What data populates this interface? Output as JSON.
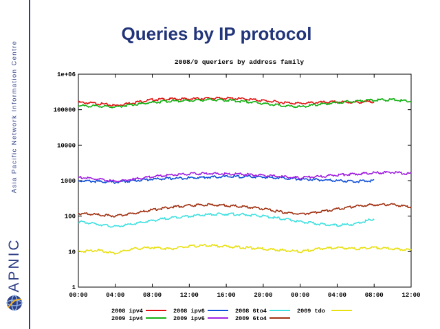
{
  "slide": {
    "title": "Queries by IP protocol",
    "org_name": "Asia Pacific Network Information Centre",
    "brand": "APNIC",
    "logo_icon": "apnic-globe-icon",
    "brand_color": "#2e3f86"
  },
  "chart_data": {
    "type": "line",
    "title": "2008/9 queriers by address family",
    "xlabel": "",
    "ylabel": "",
    "yscale": "log",
    "ylim": [
      1,
      1000000
    ],
    "yticks": [
      {
        "value": 1000000,
        "label": "1e+06"
      },
      {
        "value": 100000,
        "label": "100000"
      },
      {
        "value": 10000,
        "label": "10000"
      },
      {
        "value": 1000,
        "label": "1000"
      },
      {
        "value": 100,
        "label": "100"
      },
      {
        "value": 10,
        "label": "10"
      },
      {
        "value": 1,
        "label": "1"
      }
    ],
    "xlim": [
      0,
      36
    ],
    "xticks": [
      "00:00",
      "04:00",
      "08:00",
      "12:00",
      "16:00",
      "20:00",
      "00:00",
      "04:00",
      "08:00",
      "12:00"
    ],
    "grid": false,
    "legend_position": "bottom",
    "x": [
      0,
      2,
      4,
      6,
      8,
      10,
      12,
      14,
      16,
      18,
      20,
      22,
      24,
      26,
      28,
      30,
      32,
      34,
      36
    ],
    "series": [
      {
        "name": "2008 ipv4",
        "color": "#e01010",
        "values": [
          160000,
          150000,
          130000,
          160000,
          190000,
          200000,
          200000,
          210000,
          210000,
          200000,
          180000,
          160000,
          150000,
          160000,
          165000,
          160000,
          170000,
          null,
          null
        ]
      },
      {
        "name": "2008 ipv6",
        "color": "#1050d8",
        "values": [
          1000,
          950,
          900,
          1000,
          1100,
          1150,
          1200,
          1250,
          1300,
          1300,
          1250,
          1200,
          1100,
          1050,
          1000,
          950,
          1000,
          null,
          null
        ]
      },
      {
        "name": "2008 6to4",
        "color": "#40e0e0",
        "values": [
          70,
          60,
          50,
          60,
          75,
          90,
          100,
          110,
          115,
          110,
          100,
          85,
          70,
          60,
          55,
          60,
          85,
          null,
          null
        ]
      },
      {
        "name": "2009 tdo",
        "color": "#e8e010",
        "values": [
          10,
          11,
          9,
          12,
          13,
          12,
          14,
          15,
          14,
          13,
          12,
          11,
          10,
          12,
          13,
          12,
          13,
          12,
          11
        ]
      },
      {
        "name": "2009 ipv4",
        "color": "#10b010",
        "values": [
          130000,
          125000,
          120000,
          140000,
          160000,
          175000,
          180000,
          190000,
          185000,
          170000,
          150000,
          130000,
          120000,
          140000,
          160000,
          175000,
          185000,
          190000,
          170000
        ]
      },
      {
        "name": "2009 ipv6",
        "color": "#a020e0",
        "values": [
          1250,
          1100,
          950,
          1100,
          1300,
          1450,
          1550,
          1600,
          1550,
          1500,
          1400,
          1300,
          1200,
          1300,
          1450,
          1550,
          1650,
          1700,
          1550
        ]
      },
      {
        "name": "2009 6to4",
        "color": "#a03010",
        "values": [
          120,
          110,
          100,
          120,
          150,
          180,
          200,
          210,
          200,
          185,
          160,
          130,
          115,
          130,
          160,
          190,
          210,
          210,
          180
        ]
      }
    ]
  }
}
